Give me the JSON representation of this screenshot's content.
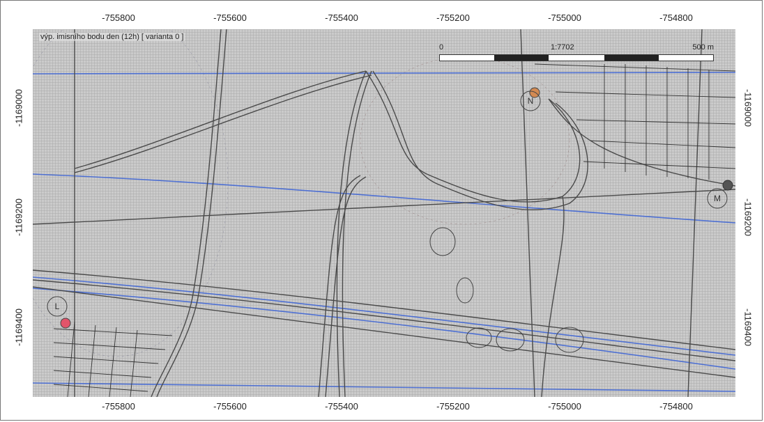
{
  "map": {
    "title": "výp. imisního bodu den (12h) [ varianta 0 ]",
    "background_color": "#c9c9c9",
    "grid_color": "#a9a9a9",
    "line_color": "#4a4a4a",
    "contour_color": "#3a62d6",
    "x_ticks": [
      "-755800",
      "-755600",
      "-755400",
      "-755200",
      "-755000",
      "-754800"
    ],
    "y_ticks": [
      "-1169000",
      "-1169200",
      "-1169400"
    ],
    "scale_bar": {
      "start_label": "0",
      "mid_label": "1:7702",
      "end_label": "500 m",
      "segments": [
        "white",
        "white",
        "black",
        "white",
        "black",
        "white"
      ]
    },
    "receptors": [
      {
        "label": "N",
        "color": "#d38a52"
      },
      {
        "label": "M",
        "color": "#555555"
      },
      {
        "label": "L",
        "color": "#e2546a"
      }
    ]
  }
}
